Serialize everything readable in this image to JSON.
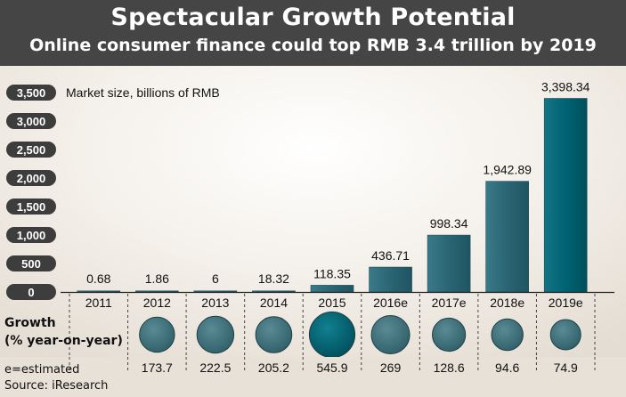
{
  "header": {
    "title": "Spectacular Growth Potential",
    "subtitle": "Online consumer finance could top RMB 3.4 trillion by 2019"
  },
  "chart_data": {
    "type": "bar",
    "ylabel": "Market size, billions of RMB",
    "ylim": [
      0,
      3500
    ],
    "yticks": [
      "3,500",
      "3,000",
      "2,500",
      "2,000",
      "1,500",
      "1,000",
      "500",
      "0"
    ],
    "ytick_values": [
      3500,
      3000,
      2500,
      2000,
      1500,
      1000,
      500,
      0
    ],
    "categories": [
      "2011",
      "2012",
      "2013",
      "2014",
      "2015",
      "2016e",
      "2017e",
      "2018e",
      "2019e"
    ],
    "values": [
      0.68,
      1.86,
      6,
      18.32,
      118.35,
      436.71,
      998.34,
      1942.89,
      3398.34
    ],
    "value_labels": [
      "0.68",
      "1.86",
      "6",
      "18.32",
      "118.35",
      "436.71",
      "998.34",
      "1,942.89",
      "3,398.34"
    ],
    "growth": {
      "label_line1": "Growth",
      "label_line2": "(% year-on-year)",
      "values": [
        null,
        173.7,
        222.5,
        205.2,
        545.9,
        269,
        128.6,
        94.6,
        74.9
      ],
      "labels": [
        "",
        "173.7",
        "222.5",
        "205.2",
        "545.9",
        "269",
        "128.6",
        "94.6",
        "74.9"
      ]
    },
    "grid": false,
    "legend": "none"
  },
  "footnotes": {
    "estimated": "e=estimated",
    "source": "Source: iResearch"
  },
  "colors": {
    "header_bg": "#454545",
    "bar": "#2f6b78",
    "bar_highlight": "#00616f",
    "ytick_pill": "#3d3d3d",
    "bubble": "#3f6f78",
    "bubble_highlight": "#005e6b"
  }
}
